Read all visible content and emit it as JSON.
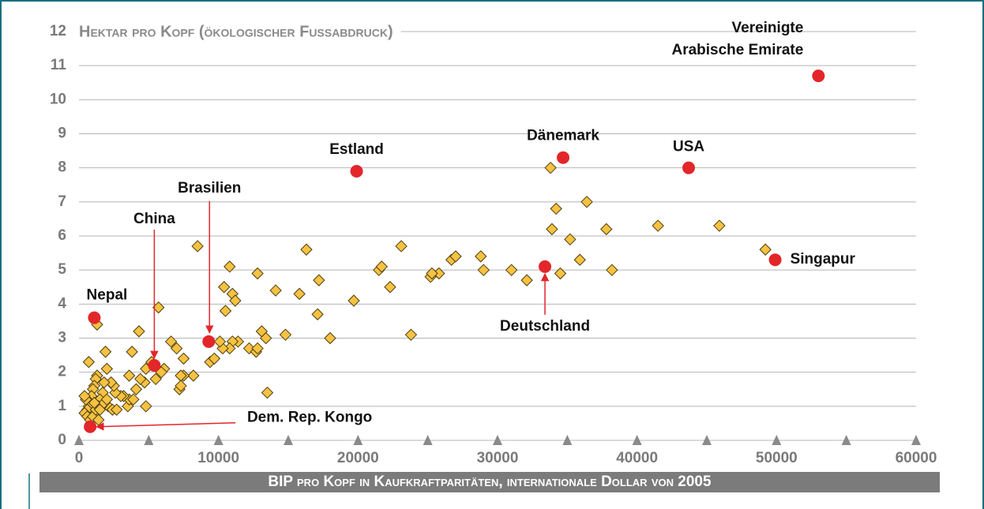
{
  "chart_data": {
    "type": "scatter",
    "ytitle": "Hektar pro Kopf (ökologischer Fussabdruck)",
    "xtitle": "BIP pro Kopf in Kaufkraftparitäten, internationale Dollar von 2005",
    "xlim": [
      0,
      60000
    ],
    "ylim": [
      0,
      12
    ],
    "xticks": [
      0,
      10000,
      20000,
      30000,
      40000,
      50000,
      60000
    ],
    "xticks_minor": [
      0,
      5000,
      10000,
      15000,
      20000,
      25000,
      30000,
      35000,
      40000,
      45000,
      50000,
      55000,
      60000
    ],
    "yticks": [
      0,
      1,
      2,
      3,
      4,
      5,
      6,
      7,
      8,
      9,
      10,
      11,
      12
    ],
    "grid": true,
    "series": [
      {
        "marker": "diamond",
        "color": "#f5c242",
        "x": [
          33800,
          34200,
          33900,
          36400,
          35200,
          35900,
          34500,
          37800,
          38200,
          41500,
          45900,
          49200,
          28800,
          29000,
          31000,
          32100,
          26700,
          27000,
          25800,
          25200,
          25300,
          23100,
          21500,
          21700,
          22300,
          23800,
          19700,
          16300,
          17200,
          17100,
          15800,
          14100,
          14800,
          18000,
          12800,
          13100,
          13400,
          13500,
          12200,
          12700,
          12800,
          11400,
          11000,
          10800,
          10300,
          10100,
          9400,
          9700,
          10400,
          10800,
          11000,
          11200,
          10500,
          8500,
          8200,
          7500,
          7300,
          7200,
          7300,
          7000,
          6600,
          7500,
          6100,
          5700,
          4300,
          3800,
          4800,
          5200,
          5500,
          5900,
          4800,
          4700,
          4400,
          4100,
          3600,
          3500,
          3600,
          3900,
          3200,
          3000,
          2600,
          2500,
          2300,
          2100,
          2400,
          2700,
          1900,
          2000,
          1800,
          1700,
          1500,
          1400,
          1300,
          1200,
          1100,
          1000,
          900,
          800,
          700,
          600,
          500,
          400,
          400,
          600,
          800,
          1000,
          1200,
          1400,
          1600,
          1800,
          2000,
          1300,
          700,
          1100,
          1500
        ],
        "values": [
          8.0,
          6.8,
          6.2,
          7.0,
          5.9,
          5.3,
          4.9,
          6.2,
          5.0,
          6.3,
          6.3,
          5.6,
          5.4,
          5.0,
          5.0,
          4.7,
          5.3,
          5.4,
          4.9,
          4.8,
          4.9,
          5.7,
          5.0,
          5.1,
          4.5,
          3.1,
          4.1,
          5.6,
          4.7,
          3.7,
          4.3,
          4.4,
          3.1,
          3.0,
          4.9,
          3.2,
          3.0,
          1.4,
          2.7,
          2.6,
          2.7,
          2.9,
          2.9,
          2.7,
          2.7,
          2.9,
          2.3,
          2.4,
          4.5,
          5.1,
          4.3,
          4.1,
          3.8,
          5.7,
          1.9,
          1.9,
          1.9,
          1.5,
          1.6,
          2.7,
          2.9,
          2.4,
          2.1,
          3.9,
          3.2,
          2.6,
          2.1,
          2.3,
          1.8,
          2.0,
          1.0,
          1.7,
          1.8,
          1.5,
          1.9,
          1.0,
          1.2,
          1.2,
          1.3,
          1.3,
          1.4,
          1.6,
          1.7,
          1.0,
          0.9,
          0.9,
          2.6,
          2.1,
          1.7,
          1.4,
          1.2,
          1.0,
          1.9,
          1.8,
          1.6,
          1.5,
          1.3,
          1.1,
          1.0,
          0.9,
          1.2,
          1.3,
          0.8,
          0.7,
          0.6,
          0.7,
          0.9,
          0.6,
          1.0,
          1.1,
          1.2,
          3.4,
          2.3,
          1.1,
          0.9
        ]
      },
      {
        "marker": "circle",
        "color": "#e3262a",
        "x": [
          1100,
          800,
          5400,
          9300,
          19900,
          34700,
          43700,
          53000,
          49900,
          33400
        ],
        "values": [
          3.6,
          0.4,
          2.2,
          2.9,
          7.9,
          8.3,
          8.0,
          10.7,
          5.3,
          5.1
        ],
        "point_labels": [
          "Nepal",
          "Dem. Rep. Kongo",
          "China",
          "Brasilien",
          "Estland",
          "Dänemark",
          "USA",
          [
            "Vereinigte",
            "Arabische Emirate"
          ],
          "Singapur",
          "Deutschland"
        ]
      }
    ]
  }
}
